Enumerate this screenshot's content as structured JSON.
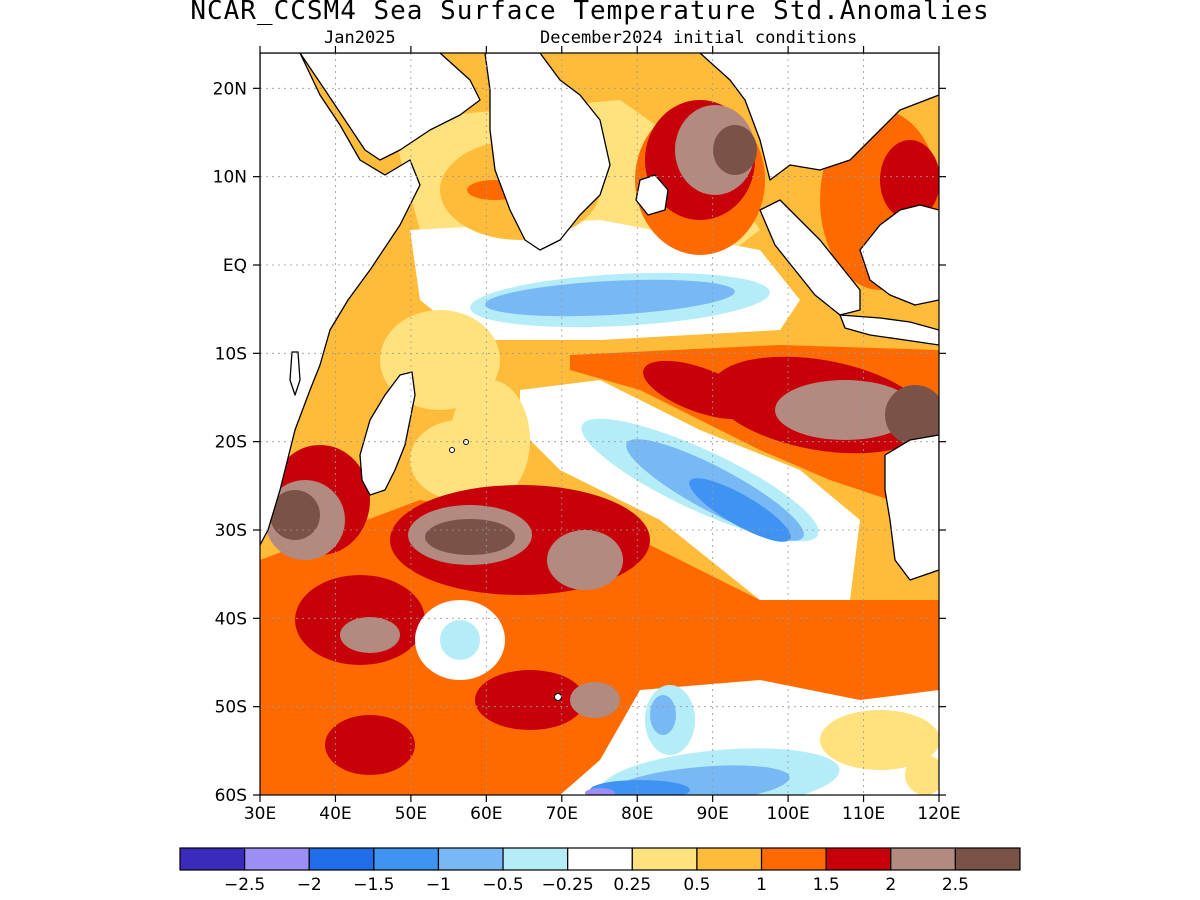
{
  "title": "NCAR_CCSM4 Sea Surface Temperature Std.Anomalies",
  "subtitle_left": "Jan2025",
  "subtitle_right": "December2024 initial conditions",
  "map": {
    "lon_range": [
      30,
      120
    ],
    "lat_range": [
      -60,
      24
    ],
    "lat_ticks": [
      {
        "v": 20,
        "label": "20N"
      },
      {
        "v": 10,
        "label": "10N"
      },
      {
        "v": 0,
        "label": "EQ"
      },
      {
        "v": -10,
        "label": "10S"
      },
      {
        "v": -20,
        "label": "20S"
      },
      {
        "v": -30,
        "label": "30S"
      },
      {
        "v": -40,
        "label": "40S"
      },
      {
        "v": -50,
        "label": "50S"
      },
      {
        "v": -60,
        "label": "60S"
      }
    ],
    "lon_ticks": [
      {
        "v": 30,
        "label": "30E"
      },
      {
        "v": 40,
        "label": "40E"
      },
      {
        "v": 50,
        "label": "50E"
      },
      {
        "v": 60,
        "label": "60E"
      },
      {
        "v": 70,
        "label": "70E"
      },
      {
        "v": 80,
        "label": "80E"
      },
      {
        "v": 90,
        "label": "90E"
      },
      {
        "v": 100,
        "label": "100E"
      },
      {
        "v": 110,
        "label": "110E"
      },
      {
        "v": 120,
        "label": "120E"
      }
    ],
    "grid": true
  },
  "colorbar": {
    "colors": [
      "#3a2bbd",
      "#9b8ef5",
      "#1f6de8",
      "#3f93f2",
      "#78b8f5",
      "#b4edf7",
      "#ffffff",
      "#ffe27e",
      "#ffbb3a",
      "#ff6a00",
      "#c8000a",
      "#b38a80",
      "#7a5248"
    ],
    "labels": [
      "−2.5",
      "−2",
      "−1.5",
      "−1",
      "−0.5",
      "−0.25",
      "0.25",
      "0.5",
      "1",
      "1.5",
      "2",
      "2.5"
    ]
  },
  "colors": {
    "vlow": "#3a2bbd",
    "lavender": "#9b8ef5",
    "blue": "#1f6de8",
    "mblue": "#3f93f2",
    "lblue": "#78b8f5",
    "cyan": "#b4edf7",
    "white": "#ffffff",
    "yellow": "#ffe27e",
    "lorange": "#ffbb3a",
    "orange": "#ff6a00",
    "red": "#c8000a",
    "taupe": "#b38a80",
    "brown": "#7a5248"
  }
}
